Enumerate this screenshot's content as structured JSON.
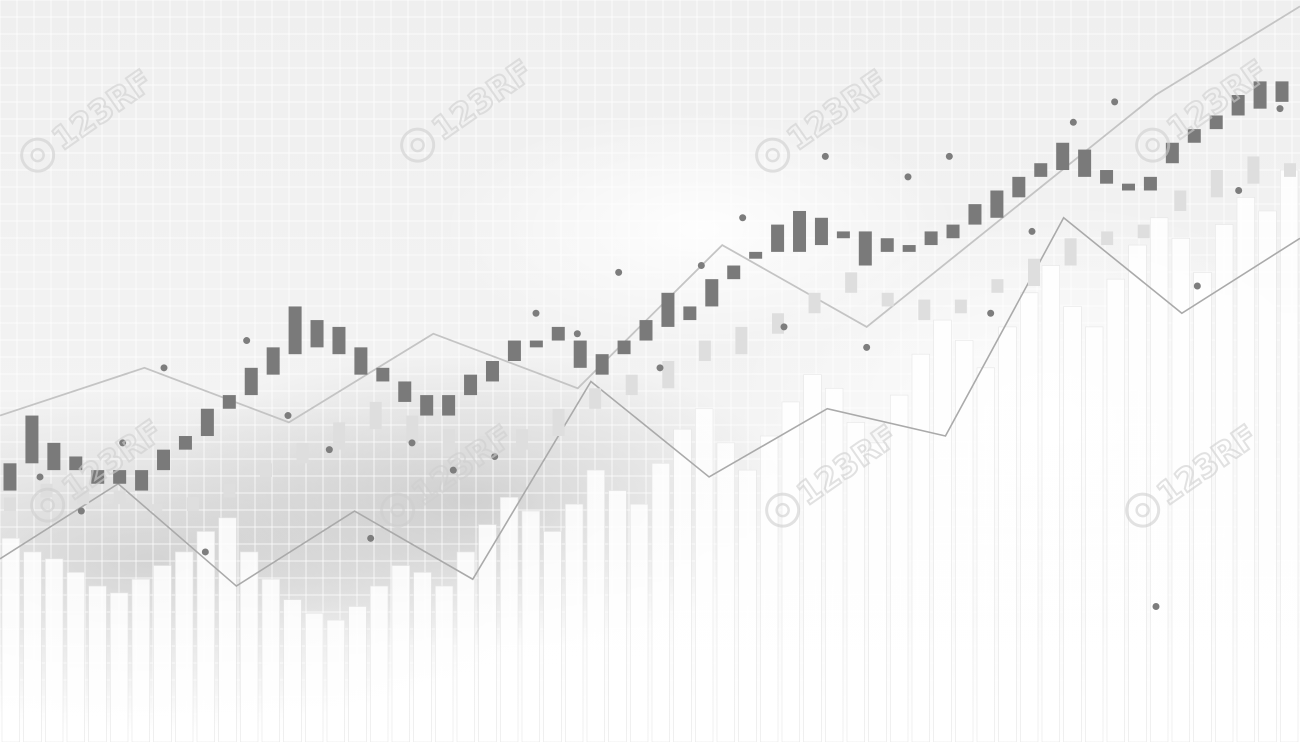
{
  "watermarks": {
    "text": "123RF",
    "color": "#cfcfcf",
    "icon": "camera-lens-logo"
  },
  "colors": {
    "background_top": "#ececec",
    "background_bottom": "#ffffff",
    "grid": "#ffffff",
    "cloud": "#bdbdbd",
    "candle_dark": "#7a7a7a",
    "candle_light": "#c9c9c9",
    "candle_faint": "#dedede",
    "line_upper": "#c4c4c4",
    "line_lower": "#aaaaaa",
    "dots": "#7d7d7d",
    "bars": "#ffffff"
  },
  "chart_data": {
    "type": "candlestick",
    "title": "",
    "xlabel": "",
    "ylabel": "",
    "grid": true,
    "legend": "none",
    "ylim": [
      0,
      100
    ],
    "series": [
      {
        "kind": "candlestick",
        "shade": "dark",
        "values": [
          {
            "open": 31,
            "close": 35
          },
          {
            "open": 35,
            "close": 42
          },
          {
            "open": 34,
            "close": 38
          },
          {
            "open": 34,
            "close": 36
          },
          {
            "open": 32,
            "close": 34
          },
          {
            "open": 32,
            "close": 34
          },
          {
            "open": 31,
            "close": 34
          },
          {
            "open": 34,
            "close": 37
          },
          {
            "open": 37,
            "close": 39
          },
          {
            "open": 39,
            "close": 43
          },
          {
            "open": 43,
            "close": 45
          },
          {
            "open": 45,
            "close": 49
          },
          {
            "open": 48,
            "close": 52
          },
          {
            "open": 51,
            "close": 58
          },
          {
            "open": 52,
            "close": 56
          },
          {
            "open": 51,
            "close": 55
          },
          {
            "open": 48,
            "close": 52
          },
          {
            "open": 47,
            "close": 49
          },
          {
            "open": 44,
            "close": 47
          },
          {
            "open": 42,
            "close": 45
          },
          {
            "open": 42,
            "close": 45
          },
          {
            "open": 45,
            "close": 48
          },
          {
            "open": 47,
            "close": 50
          },
          {
            "open": 50,
            "close": 53
          },
          {
            "open": 52,
            "close": 53
          },
          {
            "open": 53,
            "close": 55
          },
          {
            "open": 49,
            "close": 53
          },
          {
            "open": 48,
            "close": 51
          },
          {
            "open": 51,
            "close": 53
          },
          {
            "open": 53,
            "close": 56
          },
          {
            "open": 55,
            "close": 60
          },
          {
            "open": 56,
            "close": 58
          },
          {
            "open": 58,
            "close": 62
          },
          {
            "open": 62,
            "close": 64
          },
          {
            "open": 65,
            "close": 66
          },
          {
            "open": 66,
            "close": 70
          },
          {
            "open": 66,
            "close": 72
          },
          {
            "open": 67,
            "close": 71
          },
          {
            "open": 68,
            "close": 69
          },
          {
            "open": 64,
            "close": 69
          },
          {
            "open": 66,
            "close": 68
          },
          {
            "open": 66,
            "close": 67
          },
          {
            "open": 67,
            "close": 69
          },
          {
            "open": 68,
            "close": 70
          },
          {
            "open": 70,
            "close": 73
          },
          {
            "open": 71,
            "close": 75
          },
          {
            "open": 74,
            "close": 77
          },
          {
            "open": 77,
            "close": 79
          },
          {
            "open": 78,
            "close": 82
          },
          {
            "open": 77,
            "close": 81
          },
          {
            "open": 76,
            "close": 78
          },
          {
            "open": 75,
            "close": 76
          },
          {
            "open": 75,
            "close": 77
          },
          {
            "open": 79,
            "close": 82
          },
          {
            "open": 82,
            "close": 84
          },
          {
            "open": 84,
            "close": 86
          },
          {
            "open": 86,
            "close": 89
          },
          {
            "open": 87,
            "close": 91
          },
          {
            "open": 88,
            "close": 91
          }
        ]
      },
      {
        "kind": "candlestick",
        "shade": "faint",
        "values": [
          {
            "open": 28,
            "close": 30
          },
          {
            "open": 30,
            "close": 32
          },
          {
            "open": 29,
            "close": 31
          },
          {
            "open": 29,
            "close": 31
          },
          {
            "open": 28,
            "close": 29
          },
          {
            "open": 28,
            "close": 30
          },
          {
            "open": 30,
            "close": 32
          },
          {
            "open": 33,
            "close": 35
          },
          {
            "open": 35,
            "close": 38
          },
          {
            "open": 37,
            "close": 41
          },
          {
            "open": 40,
            "close": 44
          },
          {
            "open": 38,
            "close": 42
          },
          {
            "open": 36,
            "close": 40
          },
          {
            "open": 37,
            "close": 39
          },
          {
            "open": 37,
            "close": 40
          },
          {
            "open": 39,
            "close": 43
          },
          {
            "open": 43,
            "close": 46
          },
          {
            "open": 45,
            "close": 48
          },
          {
            "open": 46,
            "close": 50
          },
          {
            "open": 50,
            "close": 53
          },
          {
            "open": 51,
            "close": 55
          },
          {
            "open": 54,
            "close": 57
          },
          {
            "open": 57,
            "close": 60
          },
          {
            "open": 60,
            "close": 63
          },
          {
            "open": 58,
            "close": 60
          },
          {
            "open": 56,
            "close": 59
          },
          {
            "open": 57,
            "close": 59
          },
          {
            "open": 60,
            "close": 62
          },
          {
            "open": 61,
            "close": 65
          },
          {
            "open": 64,
            "close": 68
          },
          {
            "open": 67,
            "close": 69
          },
          {
            "open": 68,
            "close": 70
          },
          {
            "open": 72,
            "close": 75
          },
          {
            "open": 74,
            "close": 78
          },
          {
            "open": 76,
            "close": 80
          },
          {
            "open": 77,
            "close": 79
          }
        ]
      },
      {
        "kind": "line",
        "shade": "upper",
        "values": [
          42,
          49,
          41,
          54,
          46,
          67,
          55,
          72,
          89,
          102
        ]
      },
      {
        "kind": "line",
        "shade": "lower",
        "values": [
          21,
          32,
          17,
          28,
          18,
          47,
          33,
          43,
          39,
          71,
          57,
          68
        ]
      },
      {
        "kind": "bar",
        "shade": "bars",
        "values": [
          24,
          22,
          21,
          19,
          17,
          16,
          18,
          20,
          22,
          25,
          27,
          22,
          18,
          15,
          13,
          12,
          14,
          17,
          20,
          19,
          17,
          22,
          26,
          30,
          28,
          25,
          29,
          34,
          31,
          29,
          35,
          40,
          43,
          38,
          34,
          39,
          44,
          48,
          46,
          41,
          38,
          45,
          51,
          56,
          53,
          49,
          55,
          60,
          64,
          58,
          55,
          62,
          67,
          71,
          68,
          63,
          70,
          74,
          72,
          78
        ]
      },
      {
        "kind": "scatter",
        "shade": "dots",
        "values": [
          33,
          28,
          38,
          49,
          22,
          53,
          42,
          37,
          24,
          38,
          34,
          36,
          57,
          54,
          63,
          49,
          64,
          71,
          55,
          80,
          52,
          77,
          80,
          57,
          69,
          85,
          88,
          14,
          61,
          75,
          87
        ]
      }
    ]
  }
}
